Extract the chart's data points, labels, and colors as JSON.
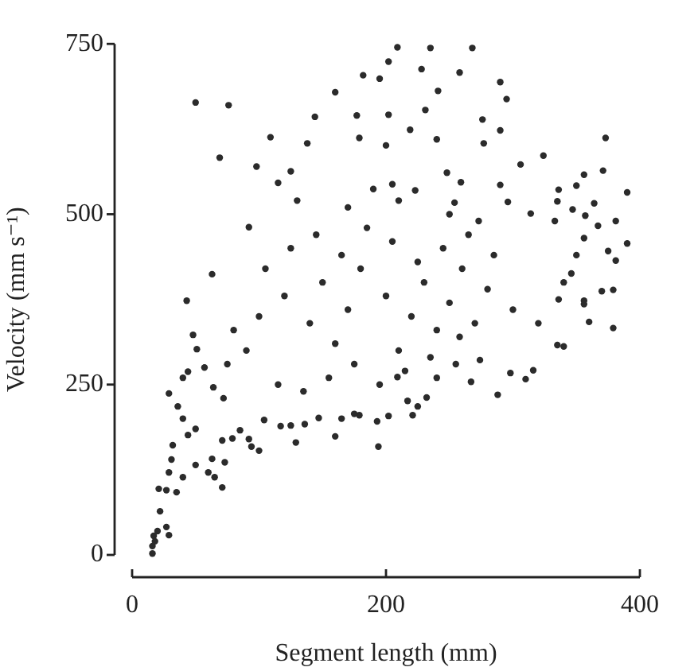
{
  "chart_data": {
    "type": "scatter",
    "xlabel": "Segment length (mm)",
    "ylabel": "Velocity (mm s⁻¹)",
    "xlim": [
      0,
      400
    ],
    "ylim": [
      0,
      750
    ],
    "xticks": [
      0,
      200,
      400
    ],
    "yticks": [
      0,
      250,
      500,
      750
    ],
    "marker": "circle",
    "color": "#2b2b2b",
    "x": [
      50,
      76,
      69,
      109,
      98,
      115,
      92,
      63,
      43,
      182,
      195,
      160,
      144,
      138,
      125,
      179,
      209,
      235,
      268,
      202,
      228,
      258,
      290,
      295,
      241,
      231,
      202,
      276,
      177,
      219,
      290,
      277,
      240,
      200,
      373,
      324,
      306,
      371,
      356,
      350,
      336,
      390,
      290,
      259,
      248,
      364,
      347,
      381,
      390,
      375,
      367,
      357,
      333,
      335,
      356,
      381,
      346,
      370,
      379,
      356,
      336,
      314,
      296,
      273,
      254,
      223,
      205,
      190,
      379,
      360,
      356,
      340,
      335,
      316,
      310,
      298,
      288,
      267,
      258,
      274,
      232,
      225,
      221,
      217,
      202,
      193,
      194,
      179,
      240,
      209,
      16,
      17,
      20,
      27,
      29,
      22,
      21,
      27,
      35,
      16,
      18,
      29,
      32,
      31,
      29,
      40,
      50,
      60,
      71,
      65,
      63,
      73,
      40,
      44,
      48,
      36,
      40,
      50,
      44,
      94,
      100,
      92,
      79,
      85,
      71,
      104,
      117,
      125,
      129,
      136,
      147,
      160,
      165,
      175,
      51,
      57,
      64,
      72,
      80,
      100,
      120,
      140,
      150,
      160,
      170,
      180,
      200,
      210,
      220,
      230,
      240,
      250,
      260,
      270,
      280,
      300,
      320,
      105,
      125,
      145,
      165,
      185,
      205,
      225,
      245,
      265,
      285,
      75,
      115,
      135,
      155,
      175,
      195,
      215,
      235,
      255,
      90,
      130,
      170,
      210,
      250,
      340,
      350
    ],
    "values": [
      664,
      660,
      583,
      613,
      570,
      546,
      481,
      412,
      373,
      704,
      699,
      679,
      643,
      604,
      563,
      612,
      745,
      744,
      744,
      724,
      713,
      708,
      694,
      669,
      681,
      653,
      646,
      639,
      645,
      624,
      623,
      604,
      610,
      601,
      612,
      586,
      573,
      564,
      558,
      542,
      536,
      532,
      543,
      547,
      561,
      516,
      507,
      490,
      457,
      446,
      483,
      498,
      490,
      519,
      465,
      432,
      413,
      387,
      389,
      373,
      375,
      501,
      518,
      490,
      517,
      535,
      544,
      537,
      333,
      342,
      368,
      306,
      308,
      271,
      258,
      267,
      235,
      254,
      320,
      286,
      231,
      218,
      205,
      226,
      204,
      196,
      159,
      205,
      260,
      261,
      2,
      28,
      35,
      41,
      29,
      64,
      97,
      95,
      92,
      13,
      20,
      237,
      161,
      140,
      121,
      114,
      132,
      121,
      99,
      114,
      141,
      136,
      260,
      269,
      323,
      218,
      200,
      185,
      176,
      159,
      153,
      170,
      171,
      183,
      168,
      198,
      189,
      190,
      165,
      192,
      201,
      174,
      200,
      207,
      302,
      275,
      246,
      230,
      330,
      350,
      380,
      340,
      400,
      310,
      360,
      420,
      380,
      300,
      350,
      400,
      330,
      370,
      420,
      340,
      390,
      360,
      340,
      420,
      450,
      470,
      440,
      480,
      460,
      430,
      450,
      470,
      440,
      280,
      250,
      240,
      260,
      280,
      250,
      270,
      290,
      280,
      300,
      520,
      510,
      520,
      500,
      400,
      440
    ]
  }
}
